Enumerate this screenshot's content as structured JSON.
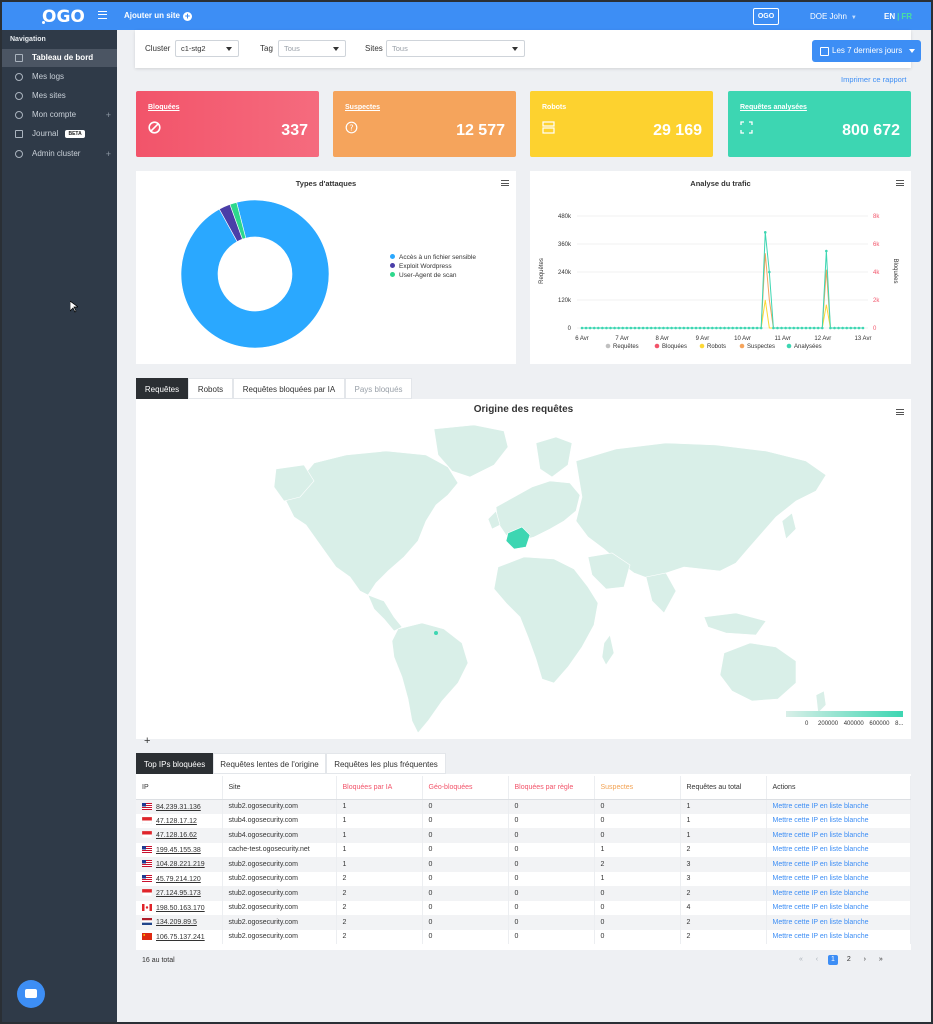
{
  "topbar": {
    "logo": "OGO",
    "add_site": "Ajouter un site",
    "org_badge": "OGO",
    "user": "DOE John",
    "lang_en": "EN",
    "lang_sep": "|",
    "lang_fr": "FR",
    "accent": "#3d8ef5"
  },
  "sidebar": {
    "title": "Navigation",
    "items": [
      {
        "label": "Tableau de bord",
        "icon": "dashboard-icon",
        "active": true
      },
      {
        "label": "Mes logs",
        "icon": "search-icon"
      },
      {
        "label": "Mes sites",
        "icon": "gear-icon"
      },
      {
        "label": "Mon compte",
        "icon": "user-icon",
        "plus": "+"
      },
      {
        "label": "Journal",
        "icon": "book-icon",
        "badge": "BETA"
      },
      {
        "label": "Admin cluster",
        "icon": "database-icon",
        "plus": "+"
      }
    ]
  },
  "filters": {
    "cluster_label": "Cluster",
    "cluster_value": "c1-stg2",
    "tag_label": "Tag",
    "tag_placeholder": "Tous",
    "sites_label": "Sites",
    "sites_placeholder": "Tous",
    "date_range": "Les 7 derniers jours",
    "print": "Imprimer ce rapport"
  },
  "kpis": [
    {
      "label": "Bloquées",
      "value": "337",
      "color": "#f2546a"
    },
    {
      "label": "Suspectes",
      "value": "12 577",
      "color": "#f5a45c"
    },
    {
      "label": "Robots",
      "value": "29 169",
      "color": "#fdd835"
    },
    {
      "label": "Requêtes analysées",
      "value": "800 672",
      "color": "#3dd6b2"
    }
  ],
  "chart_data": [
    {
      "type": "pie",
      "title": "Types d'attaques",
      "labels": [
        "Accès à un fichier sensible",
        "Exploit Wordpress",
        "User-Agent de scan"
      ],
      "values": [
        96,
        2.5,
        1.5
      ],
      "colors": [
        "#2aa8ff",
        "#4a3ea8",
        "#2dd88c"
      ],
      "legend": "right"
    },
    {
      "type": "line",
      "title": "Analyse du trafic",
      "ylabel": "Requêtes",
      "y2label": "Bloquées",
      "yticks": [
        "0",
        "120k",
        "240k",
        "360k",
        "480k"
      ],
      "ylim": [
        0,
        480000
      ],
      "y2ticks": [
        "0",
        "2k",
        "4k",
        "6k",
        "8k"
      ],
      "y2lim": [
        0,
        8000
      ],
      "xticks": [
        "6 Avr",
        "7 Avr",
        "8 Avr",
        "9 Avr",
        "10 Avr",
        "11 Avr",
        "12 Avr",
        "13 Avr"
      ],
      "legend": "bottom",
      "series": [
        {
          "name": "Requêtes",
          "color": "#c0c0c0",
          "values": [
            0,
            0,
            0,
            0,
            0,
            0,
            0,
            0,
            0,
            0,
            0,
            0,
            0,
            0,
            0,
            0,
            0,
            0,
            0,
            0,
            0,
            0,
            0,
            0,
            0,
            0,
            0,
            0,
            0,
            0,
            0,
            0,
            0,
            0,
            0,
            0,
            0,
            0,
            0,
            0,
            0,
            0,
            0,
            0,
            0,
            0,
            0,
            0,
            0,
            0,
            0,
            0,
            0,
            0,
            0,
            0,
            0,
            0,
            0,
            0,
            0,
            0,
            0,
            0,
            0,
            0,
            0,
            0,
            0,
            0,
            0,
            0,
            0,
            0,
            0,
            0,
            0,
            0,
            0,
            0,
            0,
            0,
            0,
            0,
            0,
            0,
            0,
            0,
            0,
            0,
            0,
            0,
            0,
            0,
            0,
            0
          ]
        },
        {
          "name": "Bloquées",
          "color": "#f2546a",
          "values": []
        },
        {
          "name": "Robots",
          "color": "#fdd835",
          "values": [
            0,
            0,
            0,
            0,
            0,
            0,
            0,
            0,
            0,
            0,
            0,
            0,
            0,
            0,
            0,
            0,
            0,
            0,
            0,
            0,
            0,
            0,
            0,
            0,
            0,
            0,
            0,
            0,
            0,
            0,
            0,
            0,
            0,
            0,
            0,
            0,
            0,
            0,
            0,
            0,
            0,
            0,
            0,
            0,
            0,
            0,
            0,
            0,
            0,
            0,
            0,
            0,
            0,
            0,
            0,
            0,
            0,
            0,
            0,
            0,
            0,
            0,
            0,
            0,
            0,
            0,
            0,
            0,
            0,
            0,
            0,
            0,
            0,
            0,
            0,
            0,
            0,
            0,
            0,
            0,
            0,
            0,
            0,
            0,
            0,
            0,
            0,
            0,
            0,
            0,
            0,
            0,
            0,
            0,
            0,
            0
          ]
        },
        {
          "name": "Suspectes",
          "color": "#f5a45c",
          "values": []
        },
        {
          "name": "Analysées",
          "color": "#3dd6b2",
          "values": []
        }
      ]
    }
  ],
  "tabs": [
    {
      "label": "Requêtes",
      "active": true
    },
    {
      "label": "Robots"
    },
    {
      "label": "Requêtes bloquées par IA"
    },
    {
      "label": "Pays bloqués",
      "disabled": true
    }
  ],
  "map": {
    "title": "Origine des requêtes",
    "zoom_in": "+",
    "zoom_out": "−",
    "scale_labels": [
      "0",
      "200000",
      "400000",
      "600000",
      "8..."
    ],
    "land_color": "#d9efe8",
    "highlight_color": "#3dd6b2"
  },
  "ip_tabs": [
    {
      "label": "Top IPs bloquées",
      "active": true
    },
    {
      "label": "Requêtes lentes de l'origine"
    },
    {
      "label": "Requêtes les plus fréquentes"
    }
  ],
  "ip_table": {
    "headers": [
      "IP",
      "Site",
      "Bloquées par IA",
      "Géo-bloquées",
      "Bloquées par règle",
      "Suspectes",
      "Requêtes au total",
      "Actions"
    ],
    "action_label": "Mettre cette IP en liste blanche",
    "rows": [
      {
        "flag": "us",
        "ip": "84.239.31.136",
        "site": "stub2.ogosecurity.com",
        "ia": "1",
        "geo": "0",
        "rule": "0",
        "susp": "0",
        "total": "1"
      },
      {
        "flag": "sg",
        "ip": "47.128.17.12",
        "site": "stub4.ogosecurity.com",
        "ia": "1",
        "geo": "0",
        "rule": "0",
        "susp": "0",
        "total": "1"
      },
      {
        "flag": "sg",
        "ip": "47.128.16.62",
        "site": "stub4.ogosecurity.com",
        "ia": "1",
        "geo": "0",
        "rule": "0",
        "susp": "0",
        "total": "1"
      },
      {
        "flag": "us",
        "ip": "199.45.155.38",
        "site": "cache-test.ogosecurity.net",
        "ia": "1",
        "geo": "0",
        "rule": "0",
        "susp": "1",
        "total": "2"
      },
      {
        "flag": "us",
        "ip": "104.28.221.219",
        "site": "stub2.ogosecurity.com",
        "ia": "1",
        "geo": "0",
        "rule": "0",
        "susp": "2",
        "total": "3"
      },
      {
        "flag": "us",
        "ip": "45.79.214.120",
        "site": "stub2.ogosecurity.com",
        "ia": "2",
        "geo": "0",
        "rule": "0",
        "susp": "1",
        "total": "3"
      },
      {
        "flag": "sg",
        "ip": "27.124.95.173",
        "site": "stub2.ogosecurity.com",
        "ia": "2",
        "geo": "0",
        "rule": "0",
        "susp": "0",
        "total": "2"
      },
      {
        "flag": "ca",
        "ip": "198.50.163.170",
        "site": "stub2.ogosecurity.com",
        "ia": "2",
        "geo": "0",
        "rule": "0",
        "susp": "0",
        "total": "4"
      },
      {
        "flag": "nl",
        "ip": "134.209.89.5",
        "site": "stub2.ogosecurity.com",
        "ia": "2",
        "geo": "0",
        "rule": "0",
        "susp": "0",
        "total": "2"
      },
      {
        "flag": "cn",
        "ip": "106.75.137.241",
        "site": "stub2.ogosecurity.com",
        "ia": "2",
        "geo": "0",
        "rule": "0",
        "susp": "0",
        "total": "2"
      }
    ],
    "footer": "16 au total",
    "pages": [
      "«",
      "‹",
      "1",
      "2",
      "›",
      "»"
    ],
    "current_page": "1"
  }
}
